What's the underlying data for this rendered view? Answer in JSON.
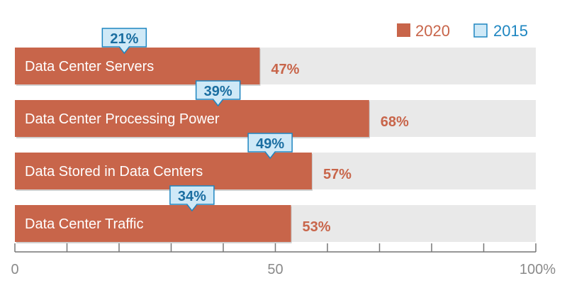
{
  "chart_data": {
    "type": "bar",
    "orientation": "horizontal",
    "categories": [
      "Data Center Servers",
      "Data Center Processing Power",
      "Data Stored in Data Centers",
      "Data Center Traffic"
    ],
    "series": [
      {
        "name": "2020",
        "values": [
          47,
          68,
          57,
          53
        ],
        "labels": [
          "47%",
          "68%",
          "57%",
          "53%"
        ]
      },
      {
        "name": "2015",
        "values": [
          21,
          39,
          49,
          34
        ],
        "labels": [
          "21%",
          "39%",
          "49%",
          "34%"
        ]
      }
    ],
    "xlim": [
      0,
      100
    ],
    "x_ticks": [
      0,
      10,
      20,
      30,
      40,
      50,
      60,
      70,
      80,
      90,
      100
    ],
    "x_tick_labels": [
      {
        "value": 0,
        "label": "0"
      },
      {
        "value": 50,
        "label": "50"
      },
      {
        "value": 100,
        "label": "100%"
      }
    ],
    "legend": {
      "position": "top-right",
      "items": [
        "2020",
        "2015"
      ]
    },
    "grid": false,
    "colors": {
      "bar_2020": "#c8654a",
      "bar_2020_label": "#c8654a",
      "track": "#e9e9e9",
      "callout_fill": "#cfe9f7",
      "callout_stroke": "#1e86c1",
      "callout_text": "#1a6ea1",
      "axis": "#777777",
      "tick_text": "#8a8a8a"
    }
  }
}
